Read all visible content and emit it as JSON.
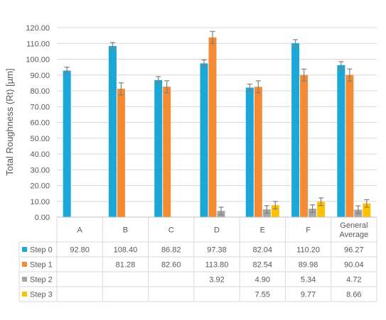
{
  "chart_data": {
    "type": "bar",
    "title": "",
    "xlabel": "",
    "ylabel": "Total Roughness (Rt) [µm]",
    "ylim": [
      0,
      120
    ],
    "y_ticks": [
      "0.00",
      "10.00",
      "20.00",
      "30.00",
      "40.00",
      "50.00",
      "60.00",
      "70.00",
      "80.00",
      "90.00",
      "100.00",
      "110.00",
      "120.00"
    ],
    "grid": true,
    "legend": "data-table",
    "categories": [
      "A",
      "B",
      "C",
      "D",
      "E",
      "F",
      "General Average"
    ],
    "category_lines": [
      [
        "A"
      ],
      [
        "B"
      ],
      [
        "C"
      ],
      [
        "D"
      ],
      [
        "E"
      ],
      [
        "F"
      ],
      [
        "General",
        "Average"
      ]
    ],
    "series": [
      {
        "name": "Step 0",
        "color": "#1BA8D8",
        "values": [
          92.8,
          108.4,
          86.82,
          97.38,
          82.04,
          110.2,
          96.27
        ],
        "errors": [
          2.2,
          2.2,
          2.2,
          2.2,
          2.2,
          2.2,
          2.2
        ],
        "labels": [
          "92.80",
          "108.40",
          "86.82",
          "97.38",
          "82.04",
          "110.20",
          "96.27"
        ]
      },
      {
        "name": "Step 1",
        "color": "#F58A33",
        "values": [
          null,
          81.28,
          82.6,
          113.8,
          82.54,
          89.98,
          90.04
        ],
        "errors": [
          null,
          3.8,
          3.8,
          3.8,
          3.8,
          3.8,
          3.8
        ],
        "labels": [
          "",
          "81.28",
          "82.60",
          "113.80",
          "82.54",
          "89.98",
          "90.04"
        ]
      },
      {
        "name": "Step 2",
        "color": "#A5A5A5",
        "values": [
          null,
          null,
          null,
          3.92,
          4.9,
          5.34,
          4.72
        ],
        "errors": [
          null,
          null,
          null,
          2.4,
          2.4,
          2.4,
          2.4
        ],
        "labels": [
          "",
          "",
          "",
          "3.92",
          "4.90",
          "5.34",
          "4.72"
        ]
      },
      {
        "name": "Step 3",
        "color": "#FFC000",
        "values": [
          null,
          null,
          null,
          null,
          7.55,
          9.77,
          8.66
        ],
        "errors": [
          null,
          null,
          null,
          null,
          2.4,
          2.4,
          2.4
        ],
        "labels": [
          "",
          "",
          "",
          "",
          "7.55",
          "9.77",
          "8.66"
        ]
      }
    ]
  }
}
